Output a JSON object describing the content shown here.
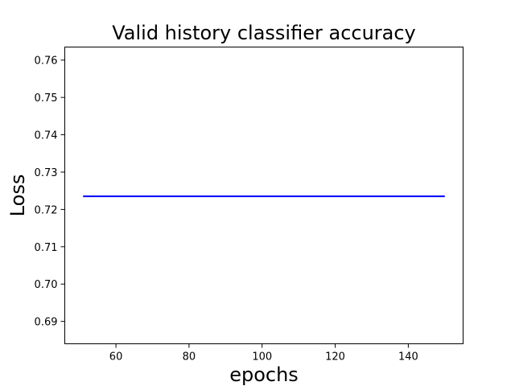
{
  "chart_data": {
    "type": "line",
    "title": "Valid history classifier accuracy",
    "xlabel": "epochs",
    "ylabel": "Loss",
    "xlim": [
      46,
      155
    ],
    "ylim": [
      0.684,
      0.7635
    ],
    "x_ticks": [
      60,
      80,
      100,
      120,
      140
    ],
    "y_ticks": [
      0.69,
      0.7,
      0.71,
      0.72,
      0.73,
      0.74,
      0.75,
      0.76
    ],
    "y_tick_labels": [
      "0.69",
      "0.70",
      "0.71",
      "0.72",
      "0.73",
      "0.74",
      "0.75",
      "0.76"
    ],
    "grid": false,
    "series": [
      {
        "color": "#0000ff",
        "x": [
          51,
          150
        ],
        "y": [
          0.7235,
          0.7235
        ]
      }
    ]
  }
}
